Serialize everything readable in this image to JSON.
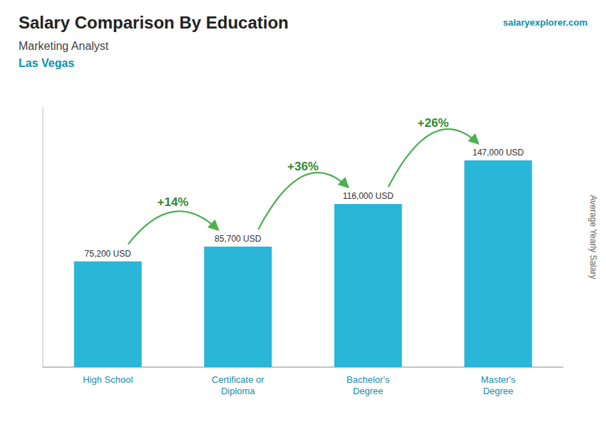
{
  "chart_data": {
    "type": "bar",
    "title": "Salary Comparison By Education",
    "subtitle": [
      "Marketing Analyst",
      "Las Vegas"
    ],
    "source": "salaryexplorer.com",
    "ylabel": "Average Yearly Salary",
    "categories": [
      "High School",
      "Certificate or\nDiploma",
      "Bachelor's\nDegree",
      "Master's\nDegree"
    ],
    "values": [
      75200,
      85700,
      116000,
      147000
    ],
    "value_labels": [
      "75,200 USD",
      "85,700 USD",
      "116,000 USD",
      "147,000 USD"
    ],
    "data_labels": true,
    "annotations": [
      "+14%",
      "+36%",
      "+26%"
    ],
    "color": "#29b6d8",
    "ylim": [
      0,
      185000
    ],
    "yticks": [],
    "tick_labels": "x",
    "grid": false
  }
}
